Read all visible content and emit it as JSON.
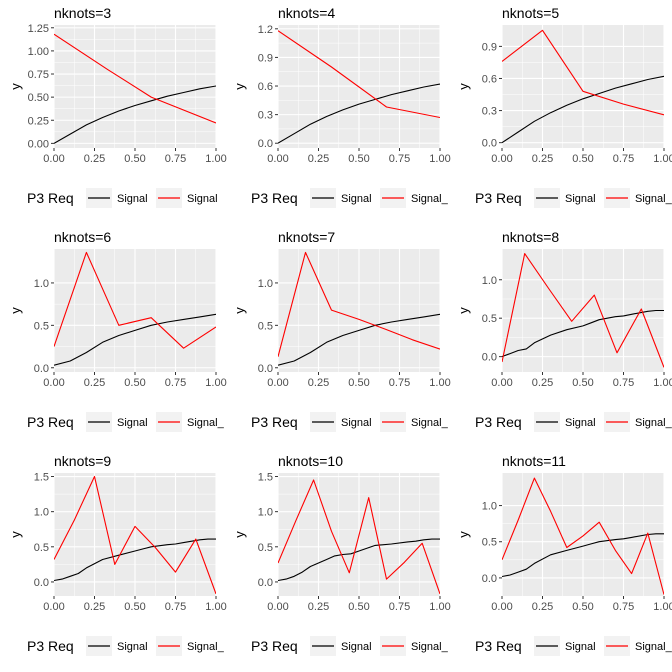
{
  "colors": {
    "panel_bg": "#EBEBEB",
    "grid": "#FFFFFF",
    "signal_line": "#000000",
    "signal2_line": "#FF0000",
    "tick_text": "#4D4D4D",
    "text": "#000000"
  },
  "chart_data": [
    {
      "type": "line",
      "title": "nknots=3",
      "xlabel": "",
      "ylabel": "y",
      "xlim": [
        0,
        1
      ],
      "ylim": [
        -0.05,
        1.28
      ],
      "x_ticks": [
        "0.00",
        "0.25",
        "0.50",
        "0.75",
        "1.00"
      ],
      "y_ticks": [
        {
          "v": 0,
          "label": "0.00"
        },
        {
          "v": 0.25,
          "label": "0.25"
        },
        {
          "v": 0.5,
          "label": "0.50"
        },
        {
          "v": 0.75,
          "label": "0.75"
        },
        {
          "v": 1.0,
          "label": "1.00"
        },
        {
          "v": 1.25,
          "label": "1.25"
        }
      ],
      "legend": {
        "title": "P3 Req",
        "entries": [
          "Signal",
          "Signal"
        ],
        "position": "bottom"
      },
      "grid": true,
      "series": [
        {
          "name": "Signal",
          "color": "#000000",
          "x": [
            0.0,
            0.1,
            0.2,
            0.3,
            0.4,
            0.5,
            0.6,
            0.7,
            0.8,
            0.9,
            1.0
          ],
          "y": [
            0.0,
            0.1,
            0.2,
            0.28,
            0.35,
            0.41,
            0.46,
            0.51,
            0.55,
            0.59,
            0.62
          ]
        },
        {
          "name": "Signal",
          "color": "#FF0000",
          "x": [
            0.0,
            0.33,
            0.6,
            1.0
          ],
          "y": [
            1.18,
            0.8,
            0.5,
            0.22
          ]
        }
      ]
    },
    {
      "type": "line",
      "title": "nknots=4",
      "xlabel": "",
      "ylabel": "y",
      "xlim": [
        0,
        1
      ],
      "ylim": [
        -0.05,
        1.24
      ],
      "x_ticks": [
        "0.00",
        "0.25",
        "0.50",
        "0.75",
        "1.00"
      ],
      "y_ticks": [
        {
          "v": 0,
          "label": "0.0"
        },
        {
          "v": 0.3,
          "label": "0.3"
        },
        {
          "v": 0.6,
          "label": "0.6"
        },
        {
          "v": 0.9,
          "label": "0.9"
        },
        {
          "v": 1.2,
          "label": "1.2"
        }
      ],
      "legend": {
        "title": "P3 Req",
        "entries": [
          "Signal",
          "Signal_"
        ],
        "position": "bottom"
      },
      "grid": true,
      "series": [
        {
          "name": "Signal",
          "color": "#000000",
          "x": [
            0.0,
            0.1,
            0.2,
            0.3,
            0.4,
            0.5,
            0.6,
            0.7,
            0.8,
            0.9,
            1.0
          ],
          "y": [
            0.0,
            0.1,
            0.2,
            0.28,
            0.35,
            0.41,
            0.46,
            0.51,
            0.55,
            0.59,
            0.62
          ]
        },
        {
          "name": "Signal_",
          "color": "#FF0000",
          "x": [
            0.0,
            0.33,
            0.67,
            1.0
          ],
          "y": [
            1.18,
            0.8,
            0.38,
            0.27
          ]
        }
      ]
    },
    {
      "type": "line",
      "title": "nknots=5",
      "xlabel": "",
      "ylabel": "y",
      "xlim": [
        0,
        1
      ],
      "ylim": [
        -0.05,
        1.1
      ],
      "x_ticks": [
        "0.00",
        "0.25",
        "0.50",
        "0.75",
        "1.00"
      ],
      "y_ticks": [
        {
          "v": 0,
          "label": "0.0"
        },
        {
          "v": 0.3,
          "label": "0.3"
        },
        {
          "v": 0.6,
          "label": "0.6"
        },
        {
          "v": 0.9,
          "label": "0.9"
        }
      ],
      "legend": {
        "title": "P3 Req",
        "entries": [
          "Signal",
          "Signal_"
        ],
        "position": "bottom"
      },
      "grid": true,
      "series": [
        {
          "name": "Signal",
          "color": "#000000",
          "x": [
            0.0,
            0.1,
            0.2,
            0.3,
            0.4,
            0.5,
            0.6,
            0.7,
            0.8,
            0.9,
            1.0
          ],
          "y": [
            0.0,
            0.1,
            0.2,
            0.28,
            0.35,
            0.41,
            0.46,
            0.51,
            0.55,
            0.59,
            0.62
          ]
        },
        {
          "name": "Signal_",
          "color": "#FF0000",
          "x": [
            0.0,
            0.25,
            0.5,
            0.75,
            1.0
          ],
          "y": [
            0.76,
            1.05,
            0.48,
            0.36,
            0.26
          ]
        }
      ]
    },
    {
      "type": "line",
      "title": "nknots=6",
      "xlabel": "",
      "ylabel": "y",
      "xlim": [
        0,
        1
      ],
      "ylim": [
        -0.05,
        1.4
      ],
      "x_ticks": [
        "0.00",
        "0.25",
        "0.50",
        "0.75",
        "1.00"
      ],
      "y_ticks": [
        {
          "v": 0,
          "label": "0.0"
        },
        {
          "v": 0.5,
          "label": "0.5"
        },
        {
          "v": 1.0,
          "label": "1.0"
        }
      ],
      "legend": {
        "title": "P3 Req",
        "entries": [
          "Signal",
          "Signal_"
        ],
        "position": "bottom"
      },
      "grid": true,
      "series": [
        {
          "name": "Signal",
          "color": "#000000",
          "x": [
            0.0,
            0.1,
            0.2,
            0.3,
            0.4,
            0.5,
            0.6,
            0.7,
            0.8,
            0.9,
            1.0
          ],
          "y": [
            0.03,
            0.08,
            0.18,
            0.3,
            0.38,
            0.44,
            0.5,
            0.54,
            0.57,
            0.6,
            0.63
          ]
        },
        {
          "name": "Signal_",
          "color": "#FF0000",
          "x": [
            0.0,
            0.2,
            0.4,
            0.6,
            0.8,
            1.0
          ],
          "y": [
            0.25,
            1.36,
            0.5,
            0.59,
            0.23,
            0.48
          ]
        }
      ]
    },
    {
      "type": "line",
      "title": "nknots=7",
      "xlabel": "",
      "ylabel": "y",
      "xlim": [
        0,
        1
      ],
      "ylim": [
        -0.05,
        1.4
      ],
      "x_ticks": [
        "0.00",
        "0.25",
        "0.50",
        "0.75",
        "1.00"
      ],
      "y_ticks": [
        {
          "v": 0,
          "label": "0.0"
        },
        {
          "v": 0.5,
          "label": "0.5"
        },
        {
          "v": 1.0,
          "label": "1.0"
        }
      ],
      "legend": {
        "title": "P3 Req",
        "entries": [
          "Signal",
          "Signal_"
        ],
        "position": "bottom"
      },
      "grid": true,
      "series": [
        {
          "name": "Signal",
          "color": "#000000",
          "x": [
            0.0,
            0.1,
            0.2,
            0.3,
            0.4,
            0.5,
            0.6,
            0.7,
            0.8,
            0.9,
            1.0
          ],
          "y": [
            0.03,
            0.08,
            0.18,
            0.3,
            0.38,
            0.44,
            0.5,
            0.54,
            0.57,
            0.6,
            0.63
          ]
        },
        {
          "name": "Signal_",
          "color": "#FF0000",
          "x": [
            0.0,
            0.17,
            0.33,
            0.5,
            0.67,
            0.83,
            1.0
          ],
          "y": [
            0.13,
            1.36,
            0.68,
            0.57,
            0.45,
            0.33,
            0.22
          ]
        }
      ]
    },
    {
      "type": "line",
      "title": "nknots=8",
      "xlabel": "",
      "ylabel": "y",
      "xlim": [
        0,
        1
      ],
      "ylim": [
        -0.2,
        1.4
      ],
      "x_ticks": [
        "0.00",
        "0.25",
        "0.50",
        "0.75",
        "1.00"
      ],
      "y_ticks": [
        {
          "v": 0,
          "label": "0.0"
        },
        {
          "v": 0.5,
          "label": "0.5"
        },
        {
          "v": 1.0,
          "label": "1.0"
        }
      ],
      "legend": {
        "title": "P3 Req",
        "entries": [
          "Signal",
          "Signal_"
        ],
        "position": "bottom"
      },
      "grid": true,
      "series": [
        {
          "name": "Signal",
          "color": "#000000",
          "x": [
            0.0,
            0.05,
            0.1,
            0.15,
            0.2,
            0.3,
            0.4,
            0.5,
            0.55,
            0.6,
            0.7,
            0.75,
            0.8,
            0.9,
            0.95,
            1.0
          ],
          "y": [
            0.0,
            0.04,
            0.08,
            0.1,
            0.18,
            0.28,
            0.35,
            0.4,
            0.44,
            0.48,
            0.52,
            0.53,
            0.55,
            0.59,
            0.6,
            0.6
          ]
        },
        {
          "name": "Signal_",
          "color": "#FF0000",
          "x": [
            0.0,
            0.14,
            0.29,
            0.43,
            0.57,
            0.71,
            0.86,
            1.0
          ],
          "y": [
            -0.07,
            1.34,
            0.88,
            0.46,
            0.8,
            0.05,
            0.62,
            -0.14
          ]
        }
      ]
    },
    {
      "type": "line",
      "title": "nknots=9",
      "xlabel": "",
      "ylabel": "y",
      "xlim": [
        0,
        1
      ],
      "ylim": [
        -0.2,
        1.55
      ],
      "x_ticks": [
        "0.00",
        "0.25",
        "0.50",
        "0.75",
        "1.00"
      ],
      "y_ticks": [
        {
          "v": 0,
          "label": "0.0"
        },
        {
          "v": 0.5,
          "label": "0.5"
        },
        {
          "v": 1.0,
          "label": "1.0"
        },
        {
          "v": 1.5,
          "label": "1.5"
        }
      ],
      "legend": {
        "title": "P3 Req",
        "entries": [
          "Signal",
          "Signal_"
        ],
        "position": "bottom"
      },
      "grid": true,
      "series": [
        {
          "name": "Signal",
          "color": "#000000",
          "x": [
            0.0,
            0.05,
            0.1,
            0.15,
            0.2,
            0.3,
            0.4,
            0.5,
            0.55,
            0.6,
            0.7,
            0.75,
            0.8,
            0.9,
            0.95,
            1.0
          ],
          "y": [
            0.02,
            0.04,
            0.08,
            0.12,
            0.2,
            0.32,
            0.38,
            0.44,
            0.47,
            0.5,
            0.53,
            0.54,
            0.56,
            0.6,
            0.61,
            0.61
          ]
        },
        {
          "name": "Signal_",
          "color": "#FF0000",
          "x": [
            0.0,
            0.125,
            0.25,
            0.375,
            0.5,
            0.625,
            0.75,
            0.875,
            1.0
          ],
          "y": [
            0.32,
            0.88,
            1.5,
            0.25,
            0.79,
            0.49,
            0.14,
            0.61,
            -0.17
          ]
        }
      ]
    },
    {
      "type": "line",
      "title": "nknots=10",
      "xlabel": "",
      "ylabel": "y",
      "xlim": [
        0,
        1
      ],
      "ylim": [
        -0.2,
        1.55
      ],
      "x_ticks": [
        "0.00",
        "0.25",
        "0.50",
        "0.75",
        "1.00"
      ],
      "y_ticks": [
        {
          "v": 0,
          "label": "0.0"
        },
        {
          "v": 0.5,
          "label": "0.5"
        },
        {
          "v": 1.0,
          "label": "1.0"
        },
        {
          "v": 1.5,
          "label": "1.5"
        }
      ],
      "legend": {
        "title": "P3 Req",
        "entries": [
          "Signal",
          "Signal_"
        ],
        "position": "bottom"
      },
      "grid": true,
      "series": [
        {
          "name": "Signal",
          "color": "#000000",
          "x": [
            0.0,
            0.05,
            0.1,
            0.15,
            0.2,
            0.3,
            0.35,
            0.4,
            0.45,
            0.5,
            0.6,
            0.7,
            0.8,
            0.85,
            0.9,
            0.95,
            1.0
          ],
          "y": [
            0.02,
            0.04,
            0.08,
            0.14,
            0.22,
            0.32,
            0.37,
            0.39,
            0.4,
            0.44,
            0.52,
            0.54,
            0.57,
            0.58,
            0.6,
            0.61,
            0.61
          ]
        },
        {
          "name": "Signal_",
          "color": "#FF0000",
          "x": [
            0.0,
            0.11,
            0.22,
            0.33,
            0.44,
            0.56,
            0.67,
            0.78,
            0.89,
            1.0
          ],
          "y": [
            0.27,
            0.87,
            1.45,
            0.72,
            0.13,
            1.2,
            0.04,
            0.28,
            0.55,
            -0.17
          ]
        }
      ]
    },
    {
      "type": "line",
      "title": "nknots=11",
      "xlabel": "",
      "ylabel": "y",
      "xlim": [
        0,
        1
      ],
      "ylim": [
        -0.25,
        1.45
      ],
      "x_ticks": [
        "0.00",
        "0.25",
        "0.50",
        "0.75",
        "1.00"
      ],
      "y_ticks": [
        {
          "v": 0,
          "label": "0.0"
        },
        {
          "v": 0.5,
          "label": "0.5"
        },
        {
          "v": 1.0,
          "label": "1.0"
        }
      ],
      "legend": {
        "title": "P3 Req",
        "entries": [
          "Signal",
          "Signal_"
        ],
        "position": "bottom"
      },
      "grid": true,
      "series": [
        {
          "name": "Signal",
          "color": "#000000",
          "x": [
            0.0,
            0.05,
            0.1,
            0.15,
            0.2,
            0.3,
            0.4,
            0.5,
            0.55,
            0.6,
            0.7,
            0.75,
            0.8,
            0.9,
            0.95,
            1.0
          ],
          "y": [
            0.02,
            0.04,
            0.08,
            0.12,
            0.2,
            0.32,
            0.38,
            0.44,
            0.47,
            0.5,
            0.53,
            0.54,
            0.56,
            0.6,
            0.61,
            0.61
          ]
        },
        {
          "name": "Signal_",
          "color": "#FF0000",
          "x": [
            0.0,
            0.1,
            0.2,
            0.3,
            0.4,
            0.5,
            0.6,
            0.7,
            0.8,
            0.9,
            1.0
          ],
          "y": [
            0.25,
            0.8,
            1.38,
            0.92,
            0.42,
            0.58,
            0.77,
            0.38,
            0.06,
            0.62,
            -0.23
          ]
        }
      ]
    }
  ]
}
